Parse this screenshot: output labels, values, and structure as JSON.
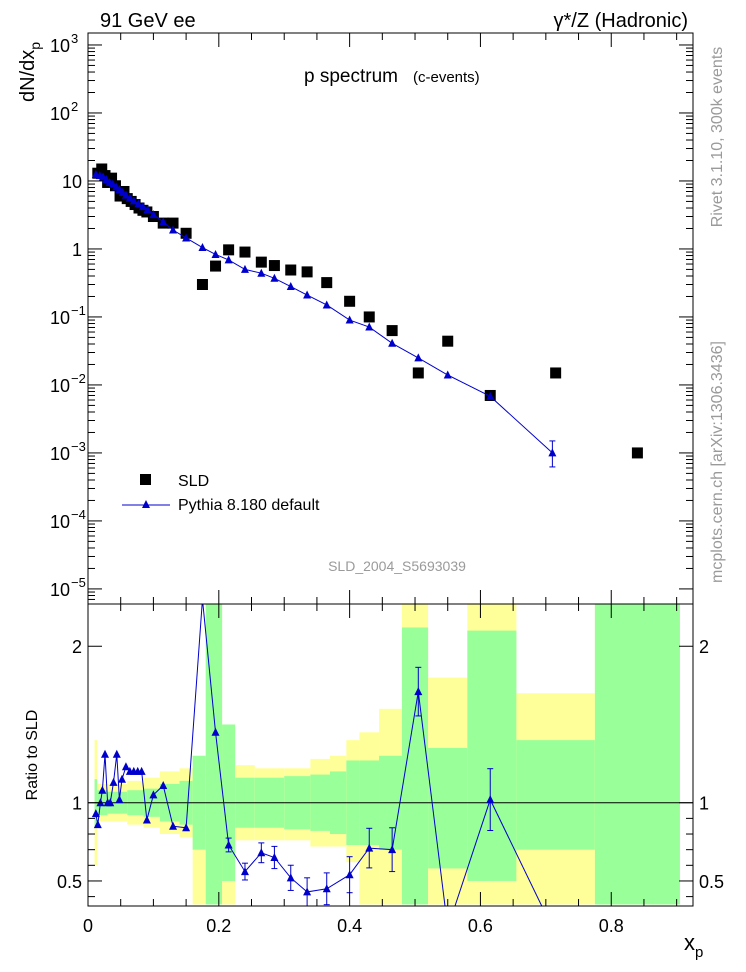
{
  "header": {
    "left": "91 GeV ee",
    "right": "γ*/Z (Hadronic)"
  },
  "side_labels": {
    "rivet": "Rivet 3.1.10,  300k events",
    "mcplots": "mcplots.cern.ch [arXiv:1306.3436]"
  },
  "watermark": "SLD_2004_S5693039",
  "chart_data": [
    {
      "type": "scatter",
      "title": "p spectrum",
      "subtitle": "(c-events)",
      "ylabel": "dN/dx",
      "ylabel_sub": "p",
      "y_scale": "log",
      "xlim": [
        0,
        0.925
      ],
      "ylim": [
        6e-06,
        1500
      ],
      "y_ticks": [
        {
          "v": 1e-05,
          "base": "10",
          "exp": "−5"
        },
        {
          "v": 0.0001,
          "base": "10",
          "exp": "−4"
        },
        {
          "v": 0.001,
          "base": "10",
          "exp": "−3"
        },
        {
          "v": 0.01,
          "base": "10",
          "exp": "−2"
        },
        {
          "v": 0.1,
          "base": "10",
          "exp": "−1"
        },
        {
          "v": 1,
          "base": "1",
          "exp": ""
        },
        {
          "v": 10,
          "base": "10",
          "exp": ""
        },
        {
          "v": 100,
          "base": "10",
          "exp": "2"
        },
        {
          "v": 1000,
          "base": "10",
          "exp": "3"
        }
      ],
      "legend_position": "bottom-left",
      "series": [
        {
          "name": "SLD",
          "color": "#000000",
          "marker": "square",
          "x": [
            0.015,
            0.021,
            0.026,
            0.03,
            0.036,
            0.042,
            0.049,
            0.055,
            0.06,
            0.066,
            0.072,
            0.078,
            0.084,
            0.09,
            0.1,
            0.115,
            0.13,
            0.15,
            0.175,
            0.195,
            0.215,
            0.24,
            0.265,
            0.285,
            0.31,
            0.335,
            0.365,
            0.4,
            0.43,
            0.465,
            0.505,
            0.55,
            0.615,
            0.715,
            0.84
          ],
          "y": [
            13,
            15,
            12,
            9.5,
            11,
            8.5,
            6,
            7,
            5.5,
            5,
            4.5,
            4,
            3.7,
            3.5,
            3,
            2.4,
            2.4,
            1.7,
            0.3,
            0.56,
            0.97,
            0.9,
            0.64,
            0.57,
            0.49,
            0.46,
            0.32,
            0.17,
            0.1,
            0.063,
            0.015,
            0.044,
            0.007,
            0.015,
            0.001
          ]
        },
        {
          "name": "Pythia 8.180 default",
          "color": "#0000cc",
          "marker": "triangle",
          "x": [
            0.012,
            0.018,
            0.023,
            0.028,
            0.033,
            0.038,
            0.043,
            0.048,
            0.053,
            0.058,
            0.064,
            0.07,
            0.077,
            0.084,
            0.091,
            0.1,
            0.115,
            0.13,
            0.15,
            0.175,
            0.195,
            0.215,
            0.24,
            0.265,
            0.285,
            0.31,
            0.335,
            0.365,
            0.4,
            0.43,
            0.465,
            0.505,
            0.55,
            0.615,
            0.71
          ],
          "y": [
            12.5,
            12,
            11.5,
            10.5,
            9.5,
            9,
            8.2,
            7.5,
            6.8,
            6.2,
            5.6,
            5.1,
            4.6,
            4.2,
            3.8,
            3.2,
            2.5,
            1.9,
            1.45,
            1.05,
            0.83,
            0.69,
            0.5,
            0.44,
            0.37,
            0.28,
            0.21,
            0.15,
            0.09,
            0.071,
            0.041,
            0.025,
            0.014,
            0.0068,
            0.001
          ]
        }
      ]
    },
    {
      "type": "line",
      "ylabel": "Ratio to SLD",
      "xlabel": "x",
      "xlabel_sub": "p",
      "xlim": [
        0,
        0.925
      ],
      "ylim": [
        0.34,
        2.27
      ],
      "x_ticks": [
        "0",
        "0.2",
        "0.4",
        "0.6",
        "0.8"
      ],
      "x_tick_values": [
        0,
        0.2,
        0.4,
        0.6,
        0.8
      ],
      "y_ticks": [
        "0.5",
        "1",
        "2"
      ],
      "y_tick_values": [
        0.5,
        1,
        2
      ],
      "uncertainty_bands": {
        "inner_color": "#99ff99",
        "outer_color": "#ffff99",
        "bins": [
          {
            "x0": 0.01,
            "x1": 0.014,
            "inner": [
              0.85,
              1.15
            ],
            "outer": [
              0.6,
              1.4
            ]
          },
          {
            "x0": 0.014,
            "x1": 0.03,
            "inner": [
              0.92,
              1.08
            ],
            "outer": [
              0.88,
              1.12
            ]
          },
          {
            "x0": 0.03,
            "x1": 0.06,
            "inner": [
              0.93,
              1.07
            ],
            "outer": [
              0.88,
              1.12
            ]
          },
          {
            "x0": 0.06,
            "x1": 0.085,
            "inner": [
              0.92,
              1.08
            ],
            "outer": [
              0.86,
              1.14
            ]
          },
          {
            "x0": 0.085,
            "x1": 0.11,
            "inner": [
              0.91,
              1.09
            ],
            "outer": [
              0.84,
              1.16
            ]
          },
          {
            "x0": 0.11,
            "x1": 0.14,
            "inner": [
              0.88,
              1.12
            ],
            "outer": [
              0.8,
              1.2
            ]
          },
          {
            "x0": 0.14,
            "x1": 0.16,
            "inner": [
              0.86,
              1.14
            ],
            "outer": [
              0.78,
              1.22
            ]
          },
          {
            "x0": 0.16,
            "x1": 0.18,
            "inner": [
              0.7,
              1.3
            ],
            "outer": [
              0.35,
              1.3
            ]
          },
          {
            "x0": 0.18,
            "x1": 0.205,
            "inner": [
              0.35,
              2.27
            ],
            "outer": [
              0.35,
              2.27
            ]
          },
          {
            "x0": 0.205,
            "x1": 0.225,
            "inner": [
              0.5,
              1.5
            ],
            "outer": [
              0.35,
              1.5
            ]
          },
          {
            "x0": 0.225,
            "x1": 0.255,
            "inner": [
              0.84,
              1.16
            ],
            "outer": [
              0.76,
              1.24
            ]
          },
          {
            "x0": 0.255,
            "x1": 0.3,
            "inner": [
              0.84,
              1.16
            ],
            "outer": [
              0.76,
              1.22
            ]
          },
          {
            "x0": 0.3,
            "x1": 0.34,
            "inner": [
              0.83,
              1.17
            ],
            "outer": [
              0.76,
              1.22
            ]
          },
          {
            "x0": 0.34,
            "x1": 0.37,
            "inner": [
              0.82,
              1.18
            ],
            "outer": [
              0.72,
              1.28
            ]
          },
          {
            "x0": 0.37,
            "x1": 0.395,
            "inner": [
              0.8,
              1.2
            ],
            "outer": [
              0.72,
              1.3
            ]
          },
          {
            "x0": 0.395,
            "x1": 0.415,
            "inner": [
              0.73,
              1.27
            ],
            "outer": [
              0.62,
              1.4
            ]
          },
          {
            "x0": 0.415,
            "x1": 0.445,
            "inner": [
              0.73,
              1.27
            ],
            "outer": [
              0.35,
              1.45
            ]
          },
          {
            "x0": 0.445,
            "x1": 0.48,
            "inner": [
              0.7,
              1.3
            ],
            "outer": [
              0.35,
              1.6
            ]
          },
          {
            "x0": 0.48,
            "x1": 0.52,
            "inner": [
              0.35,
              2.12
            ],
            "outer": [
              0.35,
              2.27
            ]
          },
          {
            "x0": 0.52,
            "x1": 0.58,
            "inner": [
              0.58,
              1.35
            ],
            "outer": [
              0.35,
              1.8
            ]
          },
          {
            "x0": 0.58,
            "x1": 0.655,
            "inner": [
              0.5,
              2.1
            ],
            "outer": [
              0.35,
              2.27
            ]
          },
          {
            "x0": 0.655,
            "x1": 0.775,
            "inner": [
              0.7,
              1.4
            ],
            "outer": [
              0.35,
              1.7
            ]
          },
          {
            "x0": 0.775,
            "x1": 0.905,
            "inner": [
              0.35,
              2.27
            ],
            "outer": [
              0.35,
              2.27
            ]
          }
        ]
      },
      "series": [
        {
          "name": "Pythia 8.180 default",
          "color": "#0000cc",
          "x": [
            0.012,
            0.015,
            0.019,
            0.022,
            0.026,
            0.03,
            0.034,
            0.039,
            0.044,
            0.048,
            0.052,
            0.058,
            0.064,
            0.07,
            0.076,
            0.082,
            0.09,
            0.1,
            0.115,
            0.13,
            0.15,
            0.175,
            0.195,
            0.215,
            0.24,
            0.265,
            0.285,
            0.31,
            0.335,
            0.365,
            0.4,
            0.43,
            0.465,
            0.505,
            0.55,
            0.615,
            0.71
          ],
          "y": [
            0.93,
            0.86,
            1.0,
            1.08,
            1.31,
            1.0,
            1.0,
            1.13,
            1.31,
            1.02,
            1.15,
            1.23,
            1.2,
            1.2,
            1.2,
            1.2,
            0.89,
            1.05,
            1.11,
            0.85,
            0.84,
            2.3,
            1.45,
            0.73,
            0.56,
            0.68,
            0.65,
            0.52,
            0.43,
            0.45,
            0.54,
            0.71,
            0.7,
            1.71,
            0.2,
            1.02,
            0.2
          ]
        }
      ]
    }
  ]
}
